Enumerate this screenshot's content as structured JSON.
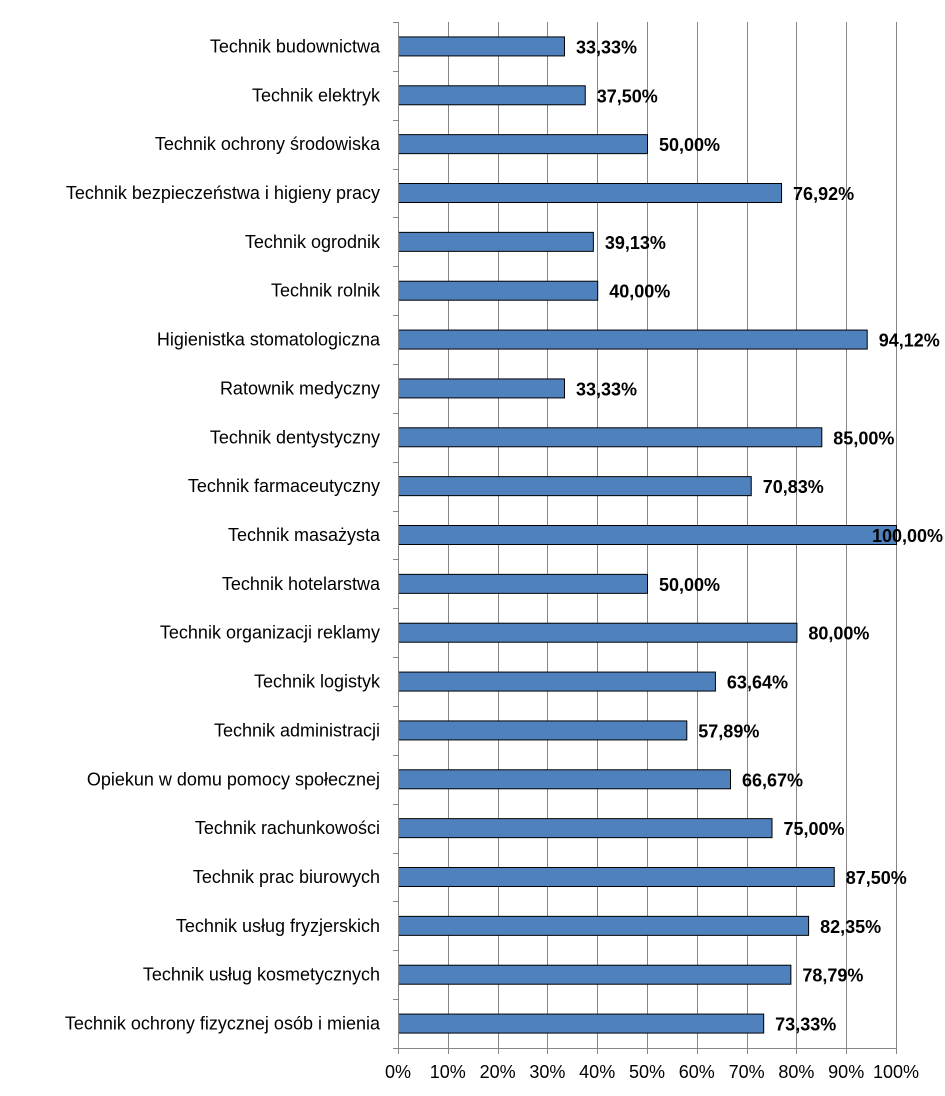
{
  "chart_data": {
    "type": "bar",
    "orientation": "horizontal",
    "categories": [
      "Technik budownictwa",
      "Technik elektryk",
      "Technik ochrony środowiska",
      "Technik bezpieczeństwa i higieny pracy",
      "Technik ogrodnik",
      "Technik rolnik",
      "Higienistka stomatologiczna",
      "Ratownik medyczny",
      "Technik dentystyczny",
      "Technik farmaceutyczny",
      "Technik masażysta",
      "Technik hotelarstwa",
      "Technik organizacji reklamy",
      "Technik logistyk",
      "Technik administracji",
      "Opiekun w domu pomocy społecznej",
      "Technik rachunkowości",
      "Technik prac biurowych",
      "Technik usług fryzjerskich",
      "Technik usług kosmetycznych",
      "Technik ochrony fizycznej osób i mienia"
    ],
    "values": [
      33.33,
      37.5,
      50.0,
      76.92,
      39.13,
      40.0,
      94.12,
      33.33,
      85.0,
      70.83,
      100.0,
      50.0,
      80.0,
      63.64,
      57.89,
      66.67,
      75.0,
      87.5,
      82.35,
      78.79,
      73.33
    ],
    "value_labels": [
      "33,33%",
      "37,50%",
      "50,00%",
      "76,92%",
      "39,13%",
      "40,00%",
      "94,12%",
      "33,33%",
      "85,00%",
      "70,83%",
      "100,00%",
      "50,00%",
      "80,00%",
      "63,64%",
      "57,89%",
      "66,67%",
      "75,00%",
      "87,50%",
      "82,35%",
      "78,79%",
      "73,33%"
    ],
    "x_ticks": [
      "0%",
      "10%",
      "20%",
      "30%",
      "40%",
      "50%",
      "60%",
      "70%",
      "80%",
      "90%",
      "100%"
    ],
    "xlim": [
      0,
      100
    ],
    "grid": true,
    "bar_color": "#4f81bd",
    "bar_edge_color": "#000000",
    "grid_color": "#868686"
  }
}
